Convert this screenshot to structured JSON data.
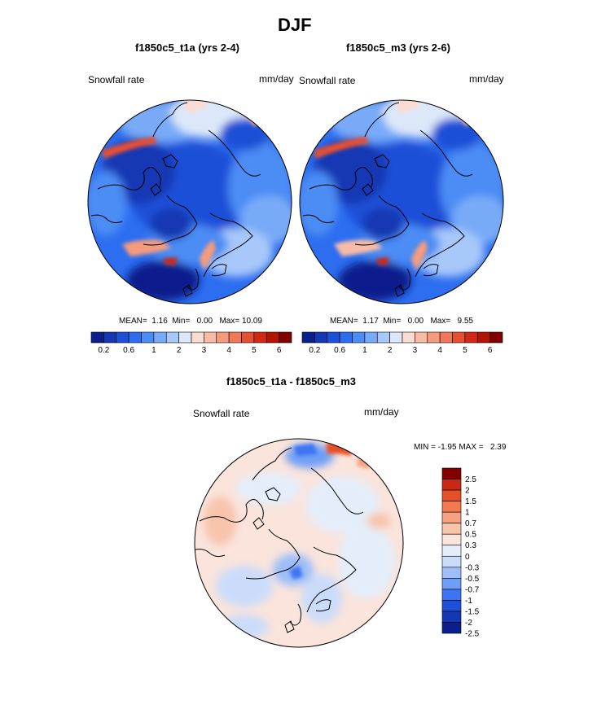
{
  "title": "DJF",
  "colors": {
    "seq": [
      "#0a1e8c",
      "#1437b4",
      "#1e50d7",
      "#2d6ef0",
      "#4b8cf5",
      "#78aaf8",
      "#a8c8fa",
      "#dce8fa",
      "#fadcd0",
      "#f8bca6",
      "#f59b7d",
      "#f0785a",
      "#e65032",
      "#d22814",
      "#b41400",
      "#820000"
    ],
    "diff": [
      "#0a1e8c",
      "#1437b4",
      "#1e50d7",
      "#3c74f2",
      "#6e9ef6",
      "#9dbef8",
      "#cbdcfa",
      "#e4eefa",
      "#fae4dc",
      "#f8c4ac",
      "#f5a182",
      "#f27a4f",
      "#e55028",
      "#c82814",
      "#820000"
    ]
  },
  "panels": [
    {
      "title": "f1850c5_t1a (yrs 2-4)",
      "left_label": "Snowfall rate",
      "right_label": "mm/day",
      "stats": {
        "mean_label": "MEAN=",
        "mean": "1.16",
        "min_label": "Min=",
        "min": "0.00",
        "max_label": "Max=",
        "max": "10.09"
      },
      "colorbar_ticks": [
        "0.2",
        "0.6",
        "1",
        "2",
        "3",
        "4",
        "5",
        "6"
      ]
    },
    {
      "title": "f1850c5_m3 (yrs 2-6)",
      "left_label": "Snowfall rate",
      "right_label": "mm/day",
      "stats": {
        "mean_label": "MEAN=",
        "mean": "1.17",
        "min_label": "Min=",
        "min": "0.00",
        "max_label": "Max=",
        "max": "9.55"
      },
      "colorbar_ticks": [
        "0.2",
        "0.6",
        "1",
        "2",
        "3",
        "4",
        "5",
        "6"
      ]
    }
  ],
  "diff_panel": {
    "title": "f1850c5_t1a - f1850c5_m3",
    "left_label": "Snowfall rate",
    "right_label": "mm/day",
    "stats": {
      "min_label": "MIN =",
      "min": "-1.95",
      "max_label": "MAX =",
      "max": "2.39"
    },
    "colorbar_ticks": [
      "2.5",
      "2",
      "1.5",
      "1",
      "0.7",
      "0.5",
      "0.3",
      "0",
      "-0.3",
      "-0.5",
      "-0.7",
      "-1",
      "-1.5",
      "-2",
      "-2.5"
    ]
  },
  "chart_data": [
    {
      "type": "heatmap",
      "projection": "north-polar-stereographic",
      "season": "DJF",
      "title": "f1850c5_t1a (yrs 2-4)",
      "variable": "Snowfall rate",
      "units": "mm/day",
      "mean": 1.16,
      "min": 0.0,
      "max": 10.09,
      "contour_levels": [
        0.2,
        0.4,
        0.6,
        0.8,
        1,
        1.5,
        2,
        2.5,
        3,
        3.5,
        4,
        4.5,
        5,
        5.5,
        6
      ]
    },
    {
      "type": "heatmap",
      "projection": "north-polar-stereographic",
      "season": "DJF",
      "title": "f1850c5_m3 (yrs 2-6)",
      "variable": "Snowfall rate",
      "units": "mm/day",
      "mean": 1.17,
      "min": 0.0,
      "max": 9.55,
      "contour_levels": [
        0.2,
        0.4,
        0.6,
        0.8,
        1,
        1.5,
        2,
        2.5,
        3,
        3.5,
        4,
        4.5,
        5,
        5.5,
        6
      ]
    },
    {
      "type": "heatmap",
      "projection": "north-polar-stereographic",
      "season": "DJF",
      "title": "f1850c5_t1a - f1850c5_m3",
      "variable": "Snowfall rate",
      "units": "mm/day",
      "min": -1.95,
      "max": 2.39,
      "contour_levels": [
        -2.5,
        -2,
        -1.5,
        -1,
        -0.7,
        -0.5,
        -0.3,
        0,
        0.3,
        0.5,
        0.7,
        1,
        1.5,
        2,
        2.5
      ]
    }
  ]
}
